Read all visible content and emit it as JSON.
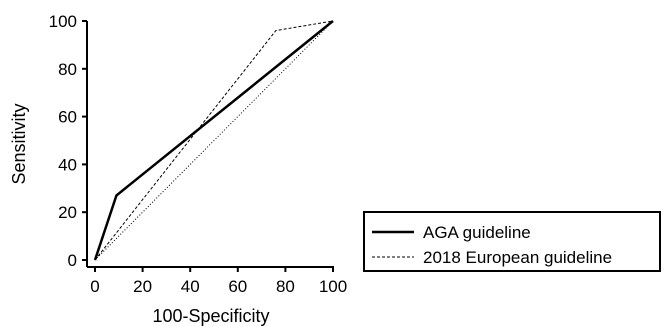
{
  "chart_data": {
    "type": "line",
    "xlabel": "100-Specificity",
    "ylabel": "Sensitivity",
    "xlim": [
      0,
      100
    ],
    "ylim": [
      0,
      100
    ],
    "x_ticks": [
      "0",
      "20",
      "40",
      "60",
      "80",
      "100"
    ],
    "y_ticks": [
      "0",
      "20",
      "40",
      "60",
      "80",
      "100"
    ],
    "grid": false,
    "legend_position": "bottom-right",
    "series": [
      {
        "name": "AGA guideline",
        "style": "solid",
        "color": "#000000",
        "x": [
          0,
          9,
          100
        ],
        "y": [
          0,
          27,
          100
        ]
      },
      {
        "name": "2018 European guideline",
        "style": "dashed",
        "color": "#000000",
        "x": [
          0,
          76,
          100
        ],
        "y": [
          0,
          96,
          100
        ]
      }
    ],
    "reference_line": {
      "style": "dotted",
      "color": "#000000",
      "x": [
        0,
        100
      ],
      "y": [
        0,
        100
      ]
    }
  }
}
